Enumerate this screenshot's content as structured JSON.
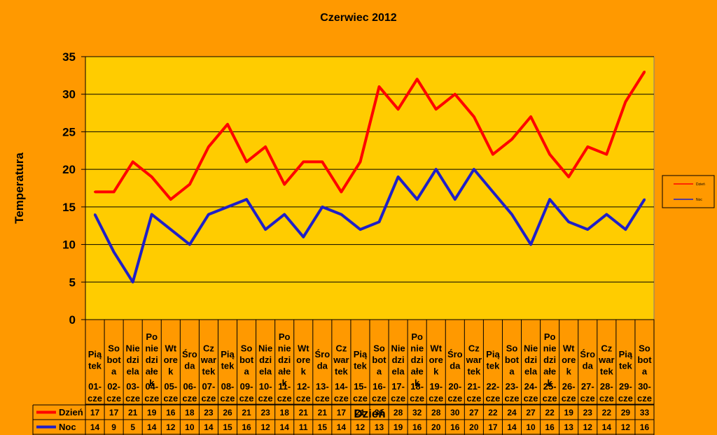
{
  "chart_data": {
    "type": "line",
    "title": "Czerwiec 2012",
    "ylabel": "Temperatura",
    "xlabel": "Dzień",
    "ylim": [
      0,
      35
    ],
    "yticks": [
      0,
      5,
      10,
      15,
      20,
      25,
      30,
      35
    ],
    "grid": true,
    "legend_position": "right",
    "background": "#FF9900",
    "plot_background": "#FFCC00",
    "categories": [
      {
        "day": [
          "Pią",
          "tek"
        ],
        "date": [
          "01-",
          "cze"
        ]
      },
      {
        "day": [
          "So",
          "bot",
          "a"
        ],
        "date": [
          "02-",
          "cze"
        ]
      },
      {
        "day": [
          "Nie",
          "dzi",
          "ela"
        ],
        "date": [
          "03-",
          "cze"
        ]
      },
      {
        "day": [
          "Po",
          "nie",
          "dzi",
          "ałe",
          "k"
        ],
        "date": [
          "04-",
          "cze"
        ]
      },
      {
        "day": [
          "Wt",
          "ore",
          "k"
        ],
        "date": [
          "05-",
          "cze"
        ]
      },
      {
        "day": [
          "Śro",
          "da"
        ],
        "date": [
          "06-",
          "cze"
        ]
      },
      {
        "day": [
          "Cz",
          "war",
          "tek"
        ],
        "date": [
          "07-",
          "cze"
        ]
      },
      {
        "day": [
          "Pią",
          "tek"
        ],
        "date": [
          "08-",
          "cze"
        ]
      },
      {
        "day": [
          "So",
          "bot",
          "a"
        ],
        "date": [
          "09-",
          "cze"
        ]
      },
      {
        "day": [
          "Nie",
          "dzi",
          "ela"
        ],
        "date": [
          "10-",
          "cze"
        ]
      },
      {
        "day": [
          "Po",
          "nie",
          "dzi",
          "ałe",
          "k"
        ],
        "date": [
          "11-",
          "cze"
        ]
      },
      {
        "day": [
          "Wt",
          "ore",
          "k"
        ],
        "date": [
          "12-",
          "cze"
        ]
      },
      {
        "day": [
          "Śro",
          "da"
        ],
        "date": [
          "13-",
          "cze"
        ]
      },
      {
        "day": [
          "Cz",
          "war",
          "tek"
        ],
        "date": [
          "14-",
          "cze"
        ]
      },
      {
        "day": [
          "Pią",
          "tek"
        ],
        "date": [
          "15-",
          "cze"
        ]
      },
      {
        "day": [
          "So",
          "bot",
          "a"
        ],
        "date": [
          "16-",
          "cze"
        ]
      },
      {
        "day": [
          "Nie",
          "dzi",
          "ela"
        ],
        "date": [
          "17-",
          "cze"
        ]
      },
      {
        "day": [
          "Po",
          "nie",
          "dzi",
          "ałe",
          "k"
        ],
        "date": [
          "18-",
          "cze"
        ]
      },
      {
        "day": [
          "Wt",
          "ore",
          "k"
        ],
        "date": [
          "19-",
          "cze"
        ]
      },
      {
        "day": [
          "Śro",
          "da"
        ],
        "date": [
          "20-",
          "cze"
        ]
      },
      {
        "day": [
          "Cz",
          "war",
          "tek"
        ],
        "date": [
          "21-",
          "cze"
        ]
      },
      {
        "day": [
          "Pią",
          "tek"
        ],
        "date": [
          "22-",
          "cze"
        ]
      },
      {
        "day": [
          "So",
          "bot",
          "a"
        ],
        "date": [
          "23-",
          "cze"
        ]
      },
      {
        "day": [
          "Nie",
          "dzi",
          "ela"
        ],
        "date": [
          "24-",
          "cze"
        ]
      },
      {
        "day": [
          "Po",
          "nie",
          "dzi",
          "ałe",
          "k"
        ],
        "date": [
          "25-",
          "cze"
        ]
      },
      {
        "day": [
          "Wt",
          "ore",
          "k"
        ],
        "date": [
          "26-",
          "cze"
        ]
      },
      {
        "day": [
          "Śro",
          "da"
        ],
        "date": [
          "27-",
          "cze"
        ]
      },
      {
        "day": [
          "Cz",
          "war",
          "tek"
        ],
        "date": [
          "28-",
          "cze"
        ]
      },
      {
        "day": [
          "Pią",
          "tek"
        ],
        "date": [
          "29-",
          "cze"
        ]
      },
      {
        "day": [
          "So",
          "bot",
          "a"
        ],
        "date": [
          "30-",
          "cze"
        ]
      }
    ],
    "series": [
      {
        "name": "Dzień",
        "color": "#FF0000",
        "values": [
          17,
          17,
          21,
          19,
          16,
          18,
          23,
          26,
          21,
          23,
          18,
          21,
          21,
          17,
          21,
          31,
          28,
          32,
          28,
          30,
          27,
          22,
          24,
          27,
          22,
          19,
          23,
          22,
          29,
          33
        ]
      },
      {
        "name": "Noc",
        "color": "#1F1FC8",
        "values": [
          14,
          9,
          5,
          14,
          12,
          10,
          14,
          15,
          16,
          12,
          14,
          11,
          15,
          14,
          12,
          13,
          19,
          16,
          20,
          16,
          20,
          17,
          14,
          10,
          16,
          13,
          12,
          14,
          12,
          16
        ]
      }
    ]
  }
}
